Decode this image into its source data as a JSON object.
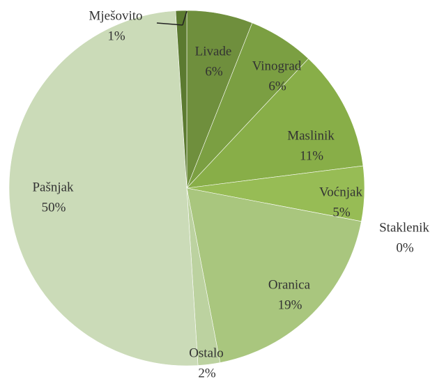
{
  "chart_data": {
    "type": "pie",
    "categories": [
      "Livade",
      "Vinograd",
      "Maslinik",
      "Voćnjak",
      "Staklenik",
      "Oranica",
      "Ostalo",
      "Pašnjak",
      "Mješovito"
    ],
    "values": [
      6,
      6,
      11,
      5,
      0,
      19,
      2,
      50,
      1
    ],
    "value_labels": [
      "6%",
      "6%",
      "11%",
      "5%",
      "0%",
      "19%",
      "2%",
      "50%",
      "1%"
    ],
    "colors": [
      "#6f8f3d",
      "#7b9f42",
      "#88ae48",
      "#97bc55",
      "#a3c468",
      "#a9c67e",
      "#bcd2a0",
      "#cbdbb8",
      "#5b7a30"
    ]
  }
}
